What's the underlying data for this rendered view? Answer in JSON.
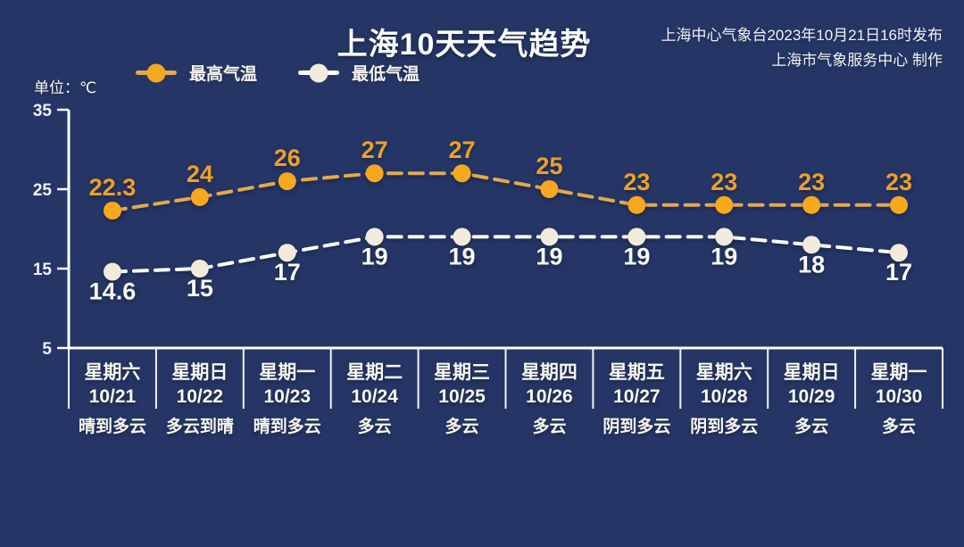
{
  "page": {
    "background_color": "#253565"
  },
  "header": {
    "title": "上海10天天气趋势",
    "publisher_line1": "上海中心气象台2023年10月21日16时发布",
    "publisher_line2": "上海市气象服务中心 制作",
    "unit_label": "单位：℃"
  },
  "legend": [
    {
      "label": "最高气温",
      "line_color": "#E2A94F",
      "marker_color": "#F6A81F"
    },
    {
      "label": "最低气温",
      "line_color": "#FFFFFF",
      "marker_color": "#F2EBDC"
    }
  ],
  "chart_data": {
    "type": "line",
    "title": "上海10天天气趋势",
    "ylabel": "单位：℃",
    "ylim": [
      5,
      35
    ],
    "yticks": [
      35,
      25,
      15,
      5
    ],
    "grid": false,
    "legend_position": "top-left",
    "line_style": "dashed",
    "columns": [
      {
        "day": "星期六",
        "date": "10/21",
        "weather": "晴到多云"
      },
      {
        "day": "星期日",
        "date": "10/22",
        "weather": "多云到晴"
      },
      {
        "day": "星期一",
        "date": "10/23",
        "weather": "晴到多云"
      },
      {
        "day": "星期二",
        "date": "10/24",
        "weather": "多云"
      },
      {
        "day": "星期三",
        "date": "10/25",
        "weather": "多云"
      },
      {
        "day": "星期四",
        "date": "10/26",
        "weather": "多云"
      },
      {
        "day": "星期五",
        "date": "10/27",
        "weather": "阴到多云"
      },
      {
        "day": "星期六",
        "date": "10/28",
        "weather": "阴到多云"
      },
      {
        "day": "星期日",
        "date": "10/29",
        "weather": "多云"
      },
      {
        "day": "星期一",
        "date": "10/30",
        "weather": "多云"
      }
    ],
    "series": [
      {
        "name": "最高气温",
        "values": [
          22.3,
          24,
          26,
          27,
          27,
          25,
          23,
          23,
          23,
          23
        ],
        "labels": [
          "22.3",
          "24",
          "26",
          "27",
          "27",
          "25",
          "23",
          "23",
          "23",
          "23"
        ],
        "label_position": "above",
        "line_color": "#E2A94F",
        "marker_color": "#F6A81F",
        "label_color": "#EFA026"
      },
      {
        "name": "最低气温",
        "values": [
          14.6,
          15,
          17,
          19,
          19,
          19,
          19,
          19,
          18,
          17
        ],
        "labels": [
          "14.6",
          "15",
          "17",
          "19",
          "19",
          "19",
          "19",
          "19",
          "18",
          "17"
        ],
        "label_position": "below",
        "line_color": "#FFFFFF",
        "marker_color": "#F2EBDC",
        "label_color": "#FBFAF6"
      }
    ],
    "axis_color": "#FFFFFF",
    "tick_label_color": "#F2F4F8",
    "column_label_color": "#FAF8F2"
  }
}
